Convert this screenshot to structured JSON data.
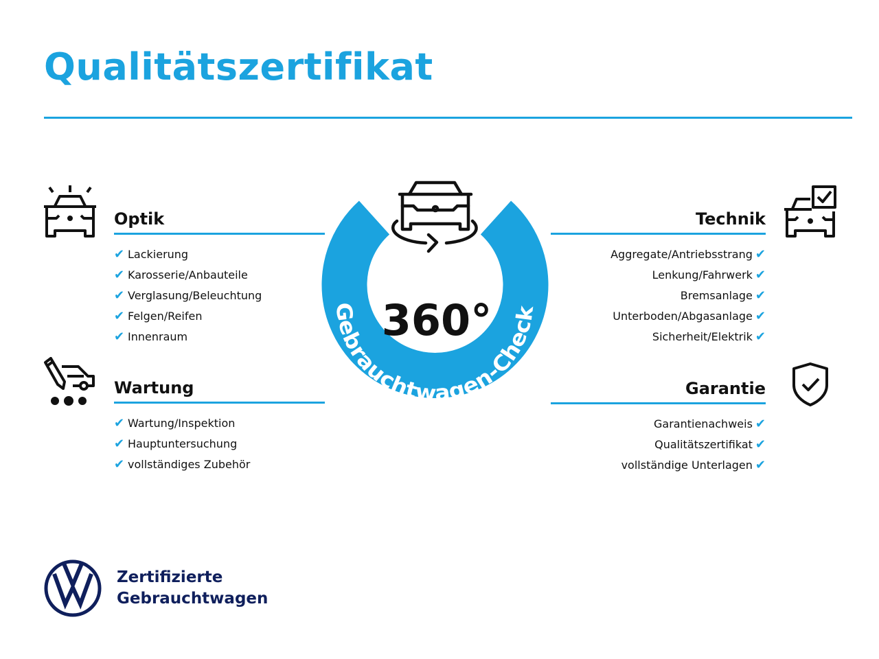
{
  "title": "Qualitätszertifikat",
  "colors": {
    "accent": "#1ba3df",
    "brand": "#0f1f5c",
    "text": "#111111"
  },
  "center": {
    "degrees": "360°",
    "ring_text": "Gebrauchtwagen-Check",
    "icon": "car-rotate-icon"
  },
  "sections": {
    "optik": {
      "heading": "Optik",
      "icon": "car-lights-icon",
      "items": [
        "Lackierung",
        "Karosserie/Anbauteile",
        "Verglasung/Beleuchtung",
        "Felgen/Reifen",
        "Innenraum"
      ]
    },
    "wartung": {
      "heading": "Wartung",
      "icon": "car-service-icon",
      "items": [
        "Wartung/Inspektion",
        "Hauptuntersuchung",
        "vollständiges Zubehör"
      ]
    },
    "technik": {
      "heading": "Technik",
      "icon": "car-checkbox-icon",
      "items": [
        "Aggregate/Antriebsstrang",
        "Lenkung/Fahrwerk",
        "Bremsanlage",
        "Unterboden/Abgasanlage",
        "Sicherheit/Elektrik"
      ]
    },
    "garantie": {
      "heading": "Garantie",
      "icon": "shield-check-icon",
      "items": [
        "Garantienachweis",
        "Qualitätszertifikat",
        "vollständige Unterlagen"
      ]
    }
  },
  "check_glyph": "✔",
  "footer": {
    "line1": "Zertifizierte",
    "line2": "Gebrauchtwagen",
    "logo": "VW"
  }
}
